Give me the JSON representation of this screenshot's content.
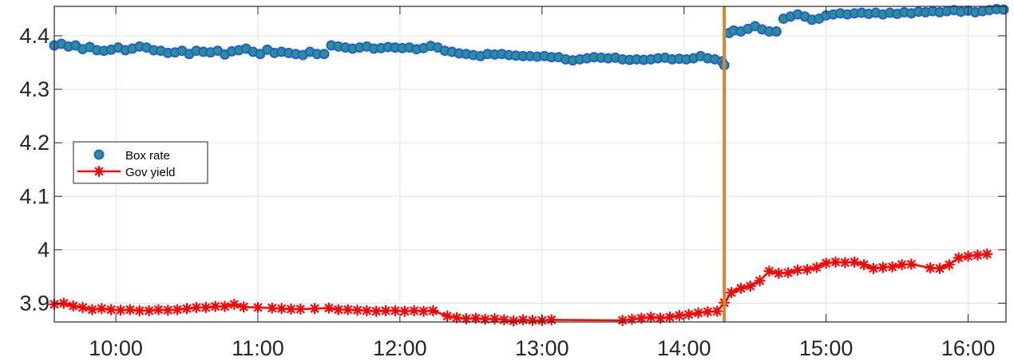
{
  "chart_data": {
    "type": "scatter",
    "title": "",
    "xlabel": "",
    "ylabel": "",
    "x_range": [
      "09:34",
      "16:16"
    ],
    "ylim": [
      3.865,
      4.455
    ],
    "grid": true,
    "legend_position": "left",
    "x_ticks": [
      "10:00",
      "11:00",
      "12:00",
      "13:00",
      "14:00",
      "15:00",
      "16:00"
    ],
    "y_ticks": [
      "3.9",
      "4",
      "4.1",
      "4.2",
      "4.3",
      "4.4"
    ],
    "y_tick_values": [
      3.9,
      4.0,
      4.1,
      4.2,
      4.3,
      4.4
    ],
    "event_line": {
      "time": "14:17",
      "color": "#d9862b"
    },
    "series": [
      {
        "name": "Box rate",
        "marker": "circle",
        "color": "#1f5fd6",
        "edge_color": "#1f5fd6",
        "face_color": "#2f8f8f",
        "points": [
          [
            "09:34",
            4.382
          ],
          [
            "09:37",
            4.385
          ],
          [
            "09:40",
            4.38
          ],
          [
            "09:43",
            4.382
          ],
          [
            "09:46",
            4.375
          ],
          [
            "09:49",
            4.379
          ],
          [
            "09:52",
            4.373
          ],
          [
            "09:55",
            4.372
          ],
          [
            "09:58",
            4.374
          ],
          [
            "10:01",
            4.378
          ],
          [
            "10:04",
            4.373
          ],
          [
            "10:07",
            4.376
          ],
          [
            "10:10",
            4.38
          ],
          [
            "10:13",
            4.378
          ],
          [
            "10:16",
            4.373
          ],
          [
            "10:19",
            4.372
          ],
          [
            "10:22",
            4.368
          ],
          [
            "10:25",
            4.369
          ],
          [
            "10:28",
            4.372
          ],
          [
            "10:31",
            4.366
          ],
          [
            "10:34",
            4.372
          ],
          [
            "10:37",
            4.37
          ],
          [
            "10:40",
            4.369
          ],
          [
            "10:43",
            4.372
          ],
          [
            "10:46",
            4.365
          ],
          [
            "10:49",
            4.371
          ],
          [
            "10:52",
            4.373
          ],
          [
            "10:55",
            4.376
          ],
          [
            "10:58",
            4.37
          ],
          [
            "11:01",
            4.366
          ],
          [
            "11:04",
            4.374
          ],
          [
            "11:07",
            4.368
          ],
          [
            "11:10",
            4.37
          ],
          [
            "11:13",
            4.368
          ],
          [
            "11:16",
            4.366
          ],
          [
            "11:19",
            4.364
          ],
          [
            "11:22",
            4.37
          ],
          [
            "11:25",
            4.366
          ],
          [
            "11:28",
            4.366
          ],
          [
            "11:31",
            4.382
          ],
          [
            "11:34",
            4.38
          ],
          [
            "11:37",
            4.378
          ],
          [
            "11:40",
            4.376
          ],
          [
            "11:43",
            4.378
          ],
          [
            "11:46",
            4.38
          ],
          [
            "11:49",
            4.376
          ],
          [
            "11:52",
            4.377
          ],
          [
            "11:55",
            4.379
          ],
          [
            "11:58",
            4.378
          ],
          [
            "12:01",
            4.377
          ],
          [
            "12:04",
            4.378
          ],
          [
            "12:07",
            4.375
          ],
          [
            "12:10",
            4.377
          ],
          [
            "12:13",
            4.381
          ],
          [
            "12:16",
            4.378
          ],
          [
            "12:19",
            4.372
          ],
          [
            "12:22",
            4.37
          ],
          [
            "12:25",
            4.367
          ],
          [
            "12:28",
            4.366
          ],
          [
            "12:31",
            4.364
          ],
          [
            "12:34",
            4.362
          ],
          [
            "12:37",
            4.366
          ],
          [
            "12:40",
            4.365
          ],
          [
            "12:43",
            4.366
          ],
          [
            "12:46",
            4.364
          ],
          [
            "12:49",
            4.363
          ],
          [
            "12:52",
            4.362
          ],
          [
            "12:55",
            4.362
          ],
          [
            "12:58",
            4.361
          ],
          [
            "13:01",
            4.362
          ],
          [
            "13:04",
            4.36
          ],
          [
            "13:07",
            4.36
          ],
          [
            "13:10",
            4.356
          ],
          [
            "13:13",
            4.354
          ],
          [
            "13:16",
            4.356
          ],
          [
            "13:19",
            4.358
          ],
          [
            "13:22",
            4.36
          ],
          [
            "13:25",
            4.359
          ],
          [
            "13:28",
            4.358
          ],
          [
            "13:31",
            4.359
          ],
          [
            "13:34",
            4.356
          ],
          [
            "13:37",
            4.355
          ],
          [
            "13:40",
            4.356
          ],
          [
            "13:43",
            4.355
          ],
          [
            "13:46",
            4.356
          ],
          [
            "13:49",
            4.358
          ],
          [
            "13:52",
            4.359
          ],
          [
            "13:55",
            4.356
          ],
          [
            "13:58",
            4.357
          ],
          [
            "14:01",
            4.356
          ],
          [
            "14:04",
            4.358
          ],
          [
            "14:07",
            4.362
          ],
          [
            "14:10",
            4.358
          ],
          [
            "14:13",
            4.356
          ],
          [
            "14:16",
            4.352
          ],
          [
            "14:17",
            4.345
          ],
          [
            "14:19",
            4.405
          ],
          [
            "14:21",
            4.41
          ],
          [
            "14:24",
            4.408
          ],
          [
            "14:27",
            4.413
          ],
          [
            "14:30",
            4.418
          ],
          [
            "14:33",
            4.412
          ],
          [
            "14:36",
            4.408
          ],
          [
            "14:39",
            4.408
          ],
          [
            "14:42",
            4.432
          ],
          [
            "14:45",
            4.436
          ],
          [
            "14:48",
            4.44
          ],
          [
            "14:51",
            4.436
          ],
          [
            "14:54",
            4.43
          ],
          [
            "14:57",
            4.432
          ],
          [
            "15:00",
            4.438
          ],
          [
            "15:03",
            4.44
          ],
          [
            "15:06",
            4.442
          ],
          [
            "15:09",
            4.44
          ],
          [
            "15:12",
            4.442
          ],
          [
            "15:15",
            4.443
          ],
          [
            "15:18",
            4.441
          ],
          [
            "15:21",
            4.443
          ],
          [
            "15:24",
            4.44
          ],
          [
            "15:27",
            4.443
          ],
          [
            "15:30",
            4.441
          ],
          [
            "15:33",
            4.444
          ],
          [
            "15:36",
            4.442
          ],
          [
            "15:39",
            4.445
          ],
          [
            "15:42",
            4.444
          ],
          [
            "15:45",
            4.446
          ],
          [
            "15:48",
            4.444
          ],
          [
            "15:51",
            4.446
          ],
          [
            "15:54",
            4.448
          ],
          [
            "15:57",
            4.445
          ],
          [
            "16:00",
            4.447
          ],
          [
            "16:03",
            4.444
          ],
          [
            "16:06",
            4.446
          ],
          [
            "16:09",
            4.448
          ],
          [
            "16:12",
            4.45
          ],
          [
            "16:15",
            4.449
          ]
        ]
      },
      {
        "name": "Gov yield",
        "marker": "asterisk-line",
        "color": "#ff0000",
        "points": [
          [
            "09:34",
            3.898
          ],
          [
            "09:38",
            3.9
          ],
          [
            "09:42",
            3.895
          ],
          [
            "09:46",
            3.892
          ],
          [
            "09:50",
            3.888
          ],
          [
            "09:54",
            3.89
          ],
          [
            "09:58",
            3.888
          ],
          [
            "10:02",
            3.887
          ],
          [
            "10:06",
            3.888
          ],
          [
            "10:10",
            3.886
          ],
          [
            "10:14",
            3.886
          ],
          [
            "10:18",
            3.888
          ],
          [
            "10:22",
            3.887
          ],
          [
            "10:26",
            3.888
          ],
          [
            "10:30",
            3.89
          ],
          [
            "10:34",
            3.892
          ],
          [
            "10:38",
            3.892
          ],
          [
            "10:42",
            3.894
          ],
          [
            "10:46",
            3.894
          ],
          [
            "10:50",
            3.898
          ],
          [
            "10:54",
            3.893
          ],
          [
            "11:00",
            3.892
          ],
          [
            "11:06",
            3.891
          ],
          [
            "11:10",
            3.89
          ],
          [
            "11:14",
            3.889
          ],
          [
            "11:18",
            3.889
          ],
          [
            "11:24",
            3.89
          ],
          [
            "11:30",
            3.891
          ],
          [
            "11:34",
            3.888
          ],
          [
            "11:38",
            3.888
          ],
          [
            "11:42",
            3.887
          ],
          [
            "11:46",
            3.886
          ],
          [
            "11:50",
            3.885
          ],
          [
            "11:54",
            3.886
          ],
          [
            "11:58",
            3.886
          ],
          [
            "12:02",
            3.885
          ],
          [
            "12:06",
            3.886
          ],
          [
            "12:10",
            3.885
          ],
          [
            "12:14",
            3.886
          ],
          [
            "12:20",
            3.876
          ],
          [
            "12:24",
            3.873
          ],
          [
            "12:28",
            3.871
          ],
          [
            "12:32",
            3.872
          ],
          [
            "12:36",
            3.87
          ],
          [
            "12:40",
            3.871
          ],
          [
            "12:44",
            3.869
          ],
          [
            "12:48",
            3.867
          ],
          [
            "12:52",
            3.869
          ],
          [
            "12:56",
            3.868
          ],
          [
            "13:00",
            3.868
          ],
          [
            "13:04",
            3.869
          ],
          [
            "13:34",
            3.868
          ],
          [
            "13:38",
            3.87
          ],
          [
            "13:42",
            3.872
          ],
          [
            "13:46",
            3.874
          ],
          [
            "13:50",
            3.872
          ],
          [
            "13:54",
            3.874
          ],
          [
            "13:58",
            3.877
          ],
          [
            "14:02",
            3.879
          ],
          [
            "14:06",
            3.882
          ],
          [
            "14:10",
            3.884
          ],
          [
            "14:14",
            3.885
          ],
          [
            "14:17",
            3.901
          ],
          [
            "14:20",
            3.92
          ],
          [
            "14:24",
            3.928
          ],
          [
            "14:28",
            3.932
          ],
          [
            "14:32",
            3.942
          ],
          [
            "14:36",
            3.96
          ],
          [
            "14:40",
            3.956
          ],
          [
            "14:44",
            3.957
          ],
          [
            "14:48",
            3.962
          ],
          [
            "14:52",
            3.963
          ],
          [
            "14:56",
            3.967
          ],
          [
            "15:00",
            3.975
          ],
          [
            "15:04",
            3.977
          ],
          [
            "15:08",
            3.976
          ],
          [
            "15:12",
            3.977
          ],
          [
            "15:16",
            3.972
          ],
          [
            "15:20",
            3.965
          ],
          [
            "15:24",
            3.967
          ],
          [
            "15:28",
            3.968
          ],
          [
            "15:32",
            3.972
          ],
          [
            "15:36",
            3.973
          ],
          [
            "15:44",
            3.966
          ],
          [
            "15:48",
            3.965
          ],
          [
            "15:52",
            3.972
          ],
          [
            "15:56",
            3.985
          ],
          [
            "16:00",
            3.988
          ],
          [
            "16:04",
            3.99
          ],
          [
            "16:08",
            3.992
          ]
        ]
      }
    ]
  }
}
